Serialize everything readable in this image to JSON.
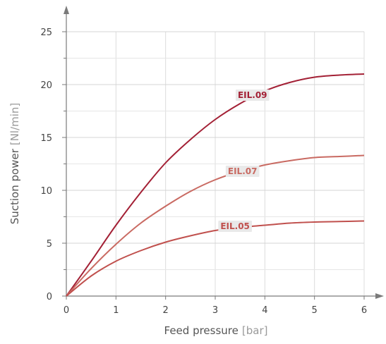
{
  "chart_data": {
    "type": "line",
    "xlabel": "Feed pressure",
    "xlabel_unit": "[bar]",
    "ylabel": "Suction power",
    "ylabel_unit": "[Nl/min]",
    "xlim": [
      0,
      6
    ],
    "ylim": [
      0,
      25
    ],
    "xticks": [
      "0",
      "1",
      "2",
      "3",
      "4",
      "5",
      "6"
    ],
    "yticks": [
      "0",
      "5",
      "10",
      "15",
      "20",
      "25"
    ],
    "grid": true,
    "series": [
      {
        "name": "EIL.09",
        "color": "#a32035",
        "label_at": [
          3.75,
          19.0
        ],
        "x": [
          0,
          0.5,
          1,
          1.5,
          2,
          2.5,
          3,
          3.5,
          4,
          4.5,
          5,
          5.5,
          6
        ],
        "y": [
          0,
          3.3,
          6.7,
          9.8,
          12.6,
          14.8,
          16.7,
          18.2,
          19.4,
          20.2,
          20.7,
          20.9,
          21.0
        ]
      },
      {
        "name": "EIL.07",
        "color": "#c96a62",
        "label_at": [
          3.55,
          11.8
        ],
        "x": [
          0,
          0.5,
          1,
          1.5,
          2,
          2.5,
          3,
          3.5,
          4,
          4.5,
          5,
          5.5,
          6
        ],
        "y": [
          0,
          2.6,
          4.9,
          6.9,
          8.5,
          9.9,
          11.0,
          11.8,
          12.4,
          12.8,
          13.1,
          13.2,
          13.3
        ]
      },
      {
        "name": "EIL.05",
        "color": "#c0504d",
        "label_at": [
          3.4,
          6.6
        ],
        "x": [
          0,
          0.5,
          1,
          1.5,
          2,
          2.5,
          3,
          3.5,
          4,
          4.5,
          5,
          5.5,
          6
        ],
        "y": [
          0,
          1.9,
          3.3,
          4.3,
          5.1,
          5.7,
          6.2,
          6.5,
          6.7,
          6.9,
          7.0,
          7.05,
          7.1
        ]
      }
    ]
  }
}
